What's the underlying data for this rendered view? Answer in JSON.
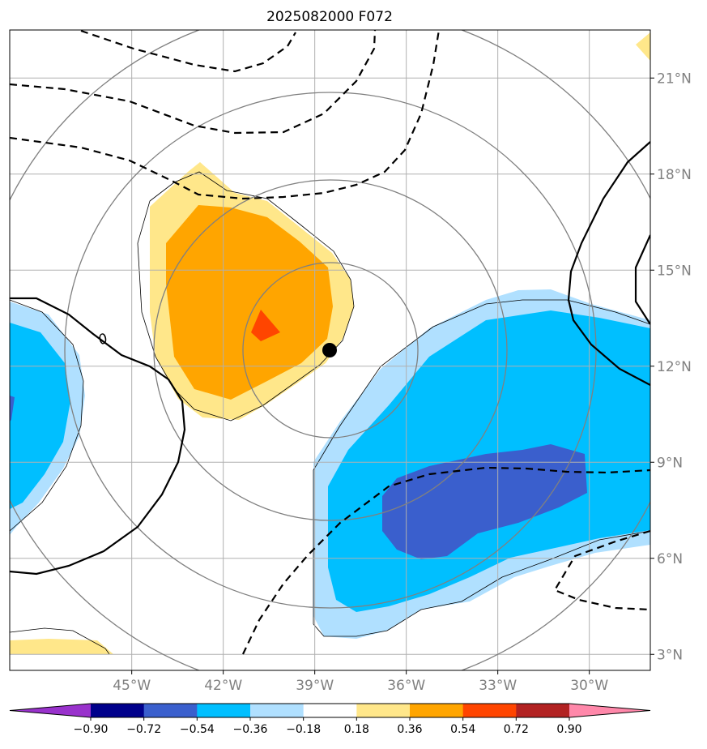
{
  "chart_data": {
    "type": "contour-map",
    "title": "2025082000 F072",
    "x_range_deg_east": [
      -49,
      -28
    ],
    "y_range_deg_north": [
      2.5,
      22.5
    ],
    "grid": true,
    "lon_ticks": [
      -45,
      -42,
      -39,
      -36,
      -33,
      -30
    ],
    "lon_labels": [
      "45°W",
      "42°W",
      "39°W",
      "36°W",
      "33°W",
      "30°W"
    ],
    "lat_ticks": [
      3,
      6,
      9,
      12,
      15,
      18,
      21
    ],
    "lat_labels": [
      "3°N",
      "6°N",
      "9°N",
      "12°N",
      "15°N",
      "18°N",
      "21°N"
    ],
    "lat_label_side": "right",
    "colorbar": {
      "orientation": "horizontal",
      "extend": "both",
      "levels": [
        -0.9,
        -0.72,
        -0.54,
        -0.36,
        -0.18,
        0.18,
        0.36,
        0.54,
        0.72,
        0.9
      ],
      "level_labels": [
        "−0.90",
        "−0.72",
        "−0.54",
        "−0.36",
        "−0.18",
        "0.18",
        "0.36",
        "0.54",
        "0.72",
        "0.90"
      ],
      "colors": [
        "#9932CC",
        "#00008B",
        "#3A5FCD",
        "#00BFFF",
        "#B0E0FF",
        "#FFFFFF",
        "#FFE78A",
        "#FFA500",
        "#FF4500",
        "#B22222",
        "#FF88AA"
      ]
    },
    "contour_label": "0",
    "center_marker": {
      "lon": -37.9,
      "lat": 12.5
    },
    "range_ring_center": {
      "lon": -37.9,
      "lat": 12.5
    }
  }
}
